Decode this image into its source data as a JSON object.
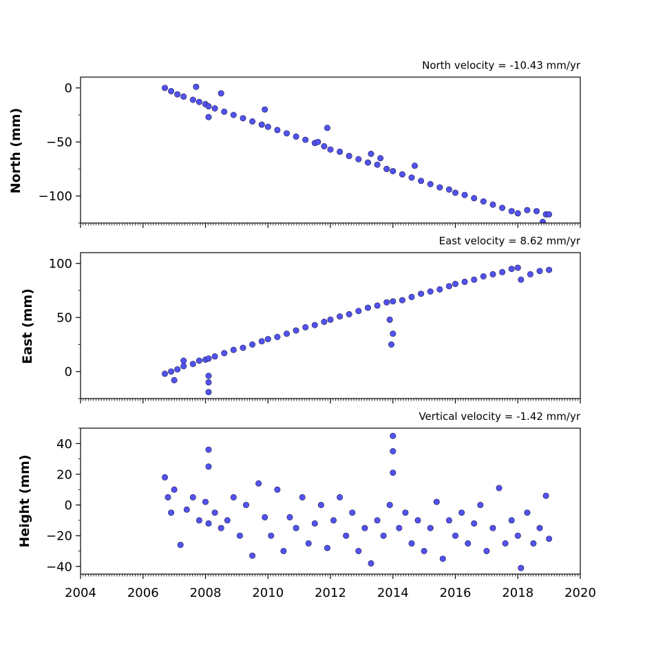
{
  "colors": {
    "marker_fill": "#5252f2",
    "marker_edge": "#1a1a40",
    "axis": "#000000"
  },
  "chart_data": [
    {
      "type": "scatter",
      "annotation": "North velocity = -10.43 mm/yr",
      "ylabel": "North (mm)",
      "xlabel": "",
      "xlim": [
        2004,
        2020
      ],
      "ylim": [
        -125,
        10
      ],
      "yticks": [
        0,
        -50,
        -100
      ],
      "ytick_labels": [
        "0",
        "−50",
        "−100"
      ],
      "xticks": [
        2004,
        2006,
        2008,
        2010,
        2012,
        2014,
        2016,
        2018,
        2020
      ],
      "xtick_labels": [],
      "grid": false,
      "series": [
        {
          "x": [
            2006.7,
            2006.9,
            2007.1,
            2007.3,
            2007.6,
            2007.8,
            2008.0,
            2008.1,
            2008.3,
            2008.6,
            2008.9,
            2009.2,
            2009.5,
            2009.8,
            2010.0,
            2010.3,
            2010.6,
            2010.9,
            2011.2,
            2011.5,
            2011.8,
            2012.0,
            2012.3,
            2012.6,
            2012.9,
            2013.2,
            2013.5,
            2013.8,
            2014.0,
            2014.3,
            2014.6,
            2014.9,
            2015.2,
            2015.5,
            2015.8,
            2016.0,
            2016.3,
            2016.6,
            2016.9,
            2017.2,
            2017.5,
            2017.8,
            2018.0,
            2018.3,
            2018.6,
            2018.9,
            2019.0,
            2007.7,
            2008.1,
            2008.5,
            2009.9,
            2011.6,
            2011.9,
            2013.3,
            2013.6,
            2013.8,
            2014.7,
            2018.8
          ],
          "y": [
            0,
            -3,
            -6,
            -8,
            -11,
            -13,
            -15,
            -17,
            -19,
            -22,
            -25,
            -28,
            -31,
            -34,
            -36,
            -39,
            -42,
            -45,
            -48,
            -51,
            -54,
            -57,
            -59,
            -63,
            -66,
            -69,
            -71,
            -75,
            -77,
            -80,
            -83,
            -86,
            -89,
            -92,
            -94,
            -97,
            -99,
            -102,
            -105,
            -108,
            -111,
            -114,
            -116,
            -113,
            -114,
            -117,
            -117,
            1,
            -27,
            -5,
            -20,
            -50,
            -37,
            -61,
            -65,
            -75,
            -72,
            -124
          ]
        }
      ]
    },
    {
      "type": "scatter",
      "annotation": "East velocity = 8.62 mm/yr",
      "ylabel": "East (mm)",
      "xlabel": "",
      "xlim": [
        2004,
        2020
      ],
      "ylim": [
        -25,
        110
      ],
      "yticks": [
        0,
        50,
        100
      ],
      "ytick_labels": [
        "0",
        "50",
        "100"
      ],
      "xticks": [
        2004,
        2006,
        2008,
        2010,
        2012,
        2014,
        2016,
        2018,
        2020
      ],
      "xtick_labels": [],
      "grid": false,
      "series": [
        {
          "x": [
            2006.7,
            2006.9,
            2007.1,
            2007.3,
            2007.6,
            2007.8,
            2008.0,
            2008.1,
            2008.3,
            2008.6,
            2008.9,
            2009.2,
            2009.5,
            2009.8,
            2010.0,
            2010.3,
            2010.6,
            2010.9,
            2011.2,
            2011.5,
            2011.8,
            2012.0,
            2012.3,
            2012.6,
            2012.9,
            2013.2,
            2013.5,
            2013.8,
            2014.0,
            2014.3,
            2014.6,
            2014.9,
            2015.2,
            2015.5,
            2015.8,
            2016.0,
            2016.3,
            2016.6,
            2016.9,
            2017.2,
            2017.5,
            2017.8,
            2018.0,
            2018.1,
            2018.4,
            2018.7,
            2019.0,
            2008.1,
            2008.1,
            2008.1,
            2013.9,
            2013.95,
            2014.0,
            2007.3,
            2007.0
          ],
          "y": [
            -2,
            0,
            2,
            5,
            7,
            10,
            11,
            12,
            14,
            17,
            20,
            22,
            25,
            28,
            30,
            32,
            35,
            38,
            41,
            43,
            46,
            48,
            51,
            53,
            56,
            59,
            61,
            64,
            65,
            66,
            69,
            72,
            74,
            76,
            79,
            81,
            83,
            85,
            88,
            90,
            92,
            95,
            96,
            85,
            90,
            93,
            94,
            -4,
            -10,
            -19,
            48,
            25,
            35,
            10,
            -8
          ]
        }
      ]
    },
    {
      "type": "scatter",
      "annotation": "Vertical velocity = -1.42 mm/yr",
      "ylabel": "Height (mm)",
      "xlabel": "",
      "xlim": [
        2004,
        2020
      ],
      "ylim": [
        -45,
        50
      ],
      "yticks": [
        40,
        20,
        0,
        -20,
        -40
      ],
      "ytick_labels": [
        "40",
        "20",
        "0",
        "−20",
        "−40"
      ],
      "xticks": [
        2004,
        2006,
        2008,
        2010,
        2012,
        2014,
        2016,
        2018,
        2020
      ],
      "xtick_labels": [
        "2004",
        "2006",
        "2008",
        "2010",
        "2012",
        "2014",
        "2016",
        "2018",
        "2020"
      ],
      "grid": false,
      "series": [
        {
          "x": [
            2006.7,
            2006.8,
            2006.9,
            2007.0,
            2007.2,
            2007.4,
            2007.6,
            2007.8,
            2008.0,
            2008.1,
            2008.1,
            2008.1,
            2008.3,
            2008.5,
            2008.7,
            2008.9,
            2009.1,
            2009.3,
            2009.5,
            2009.7,
            2009.9,
            2010.1,
            2010.3,
            2010.5,
            2010.7,
            2010.9,
            2011.1,
            2011.3,
            2011.5,
            2011.7,
            2011.9,
            2012.1,
            2012.3,
            2012.5,
            2012.7,
            2012.9,
            2013.1,
            2013.3,
            2013.5,
            2013.7,
            2013.9,
            2014.0,
            2014.0,
            2014.0,
            2014.2,
            2014.4,
            2014.6,
            2014.8,
            2015.0,
            2015.2,
            2015.4,
            2015.6,
            2015.8,
            2016.0,
            2016.2,
            2016.4,
            2016.6,
            2016.8,
            2017.0,
            2017.2,
            2017.4,
            2017.6,
            2017.8,
            2018.0,
            2018.1,
            2018.3,
            2018.5,
            2018.7,
            2018.9,
            2019.0
          ],
          "y": [
            18,
            5,
            -5,
            10,
            -26,
            -3,
            5,
            -10,
            2,
            36,
            25,
            -12,
            -5,
            -15,
            -10,
            5,
            -20,
            0,
            -33,
            14,
            -8,
            -20,
            10,
            -30,
            -8,
            -15,
            5,
            -25,
            -12,
            0,
            -28,
            -10,
            5,
            -20,
            -5,
            -30,
            -15,
            -38,
            -10,
            -20,
            0,
            45,
            35,
            21,
            -15,
            -5,
            -25,
            -10,
            -30,
            -15,
            2,
            -35,
            -10,
            -20,
            -5,
            -25,
            -12,
            0,
            -30,
            -15,
            11,
            -25,
            -10,
            -20,
            -41,
            -5,
            -25,
            -15,
            6,
            -22
          ]
        }
      ]
    }
  ]
}
